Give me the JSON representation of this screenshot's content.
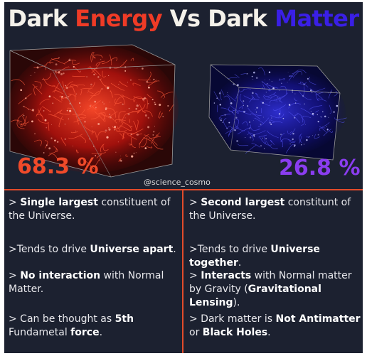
{
  "title": {
    "word1": "Dark",
    "word2": "Energy",
    "word3": "Vs",
    "word4": "Dark",
    "word5": "Matter"
  },
  "left": {
    "percent": "68.3 %",
    "items": [
      [
        {
          "t": "> ",
          "b": false
        },
        {
          "t": "Single largest",
          "b": true
        },
        {
          "t": " constituent of the Universe.",
          "b": false
        }
      ],
      [
        {
          "t": ">Tends to drive ",
          "b": false
        },
        {
          "t": "Universe apart",
          "b": true
        },
        {
          "t": ".",
          "b": false
        }
      ],
      [
        {
          "t": "> ",
          "b": false
        },
        {
          "t": "No interaction",
          "b": true
        },
        {
          "t": " with Normal Matter.",
          "b": false
        }
      ],
      [
        {
          "t": "> Can be thought as ",
          "b": false
        },
        {
          "t": "5th",
          "b": true
        },
        {
          "t": " Fundametal ",
          "b": false
        },
        {
          "t": "force",
          "b": true
        },
        {
          "t": ".",
          "b": false
        }
      ]
    ]
  },
  "right": {
    "percent": "26.8 %",
    "items": [
      [
        {
          "t": "> ",
          "b": false
        },
        {
          "t": "Second largest",
          "b": true
        },
        {
          "t": " constitunt of the Universe.",
          "b": false
        }
      ],
      [
        {
          "t": ">Tends to drive ",
          "b": false
        },
        {
          "t": "Universe together",
          "b": true
        },
        {
          "t": ".",
          "b": false
        }
      ],
      [
        {
          "t": "> ",
          "b": false
        },
        {
          "t": "Interacts",
          "b": true
        },
        {
          "t": " with Normal matter by Gravity (",
          "b": false
        },
        {
          "t": "Gravitational Lensing",
          "b": true
        },
        {
          "t": ").",
          "b": false
        }
      ],
      [
        {
          "t": "> Dark matter is ",
          "b": false
        },
        {
          "t": "Not Antimatter",
          "b": true
        },
        {
          "t": " or ",
          "b": false
        },
        {
          "t": "Black Holes",
          "b": true
        },
        {
          "t": ".",
          "b": false
        }
      ]
    ]
  },
  "handle": "@science_cosmo",
  "colors": {
    "background": "#1c2130",
    "energy": "#ef3b26",
    "matter": "#3a1fe6",
    "matter_percent": "#8a3df0",
    "divider": "#e24b2a"
  }
}
